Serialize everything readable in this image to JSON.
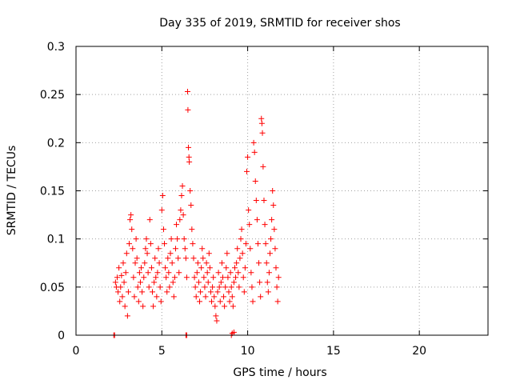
{
  "chart_data": {
    "type": "scatter",
    "title": "Day 335 of 2019, SRMTID for receiver shos",
    "xlabel": "GPS time / hours",
    "ylabel": "SRMTID / TECUs",
    "xlim": [
      0,
      24
    ],
    "ylim": [
      0,
      0.3
    ],
    "x_ticks": [
      0,
      5,
      10,
      15,
      20
    ],
    "y_ticks": [
      0,
      0.05,
      0.1,
      0.15,
      0.2,
      0.25,
      0.3
    ],
    "x_tick_labels": [
      "0",
      "5",
      "10",
      "15",
      "20"
    ],
    "y_tick_labels": [
      "0",
      "0.05",
      "0.1",
      "0.15",
      "0.2",
      "0.25",
      "0.3"
    ],
    "grid": true,
    "marker": "plus",
    "color": "#ff0000",
    "series": [
      {
        "name": "SRMTID",
        "points": [
          [
            2.2,
            0.0
          ],
          [
            2.25,
            0.0
          ],
          [
            6.4,
            0.0
          ],
          [
            6.45,
            0.0
          ],
          [
            9.05,
            0.0
          ],
          [
            9.1,
            0.002
          ],
          [
            9.2,
            0.003
          ],
          [
            2.3,
            0.055
          ],
          [
            2.35,
            0.05
          ],
          [
            2.4,
            0.06
          ],
          [
            2.45,
            0.045
          ],
          [
            2.5,
            0.07
          ],
          [
            2.55,
            0.035
          ],
          [
            2.6,
            0.05
          ],
          [
            2.65,
            0.062
          ],
          [
            2.7,
            0.04
          ],
          [
            2.75,
            0.075
          ],
          [
            2.8,
            0.055
          ],
          [
            2.85,
            0.03
          ],
          [
            2.9,
            0.065
          ],
          [
            2.95,
            0.085
          ],
          [
            3.0,
            0.02
          ],
          [
            3.05,
            0.045
          ],
          [
            3.1,
            0.095
          ],
          [
            3.15,
            0.12
          ],
          [
            3.2,
            0.125
          ],
          [
            3.25,
            0.11
          ],
          [
            3.3,
            0.09
          ],
          [
            3.35,
            0.06
          ],
          [
            3.4,
            0.04
          ],
          [
            3.45,
            0.075
          ],
          [
            3.5,
            0.1
          ],
          [
            3.55,
            0.08
          ],
          [
            3.6,
            0.05
          ],
          [
            3.65,
            0.035
          ],
          [
            3.7,
            0.065
          ],
          [
            3.75,
            0.055
          ],
          [
            3.8,
            0.07
          ],
          [
            3.85,
            0.045
          ],
          [
            3.9,
            0.03
          ],
          [
            3.95,
            0.06
          ],
          [
            4.0,
            0.075
          ],
          [
            4.05,
            0.09
          ],
          [
            4.1,
            0.1
          ],
          [
            4.15,
            0.085
          ],
          [
            4.2,
            0.065
          ],
          [
            4.25,
            0.05
          ],
          [
            4.3,
            0.12
          ],
          [
            4.35,
            0.095
          ],
          [
            4.4,
            0.07
          ],
          [
            4.45,
            0.045
          ],
          [
            4.5,
            0.03
          ],
          [
            4.55,
            0.055
          ],
          [
            4.6,
            0.08
          ],
          [
            4.65,
            0.06
          ],
          [
            4.7,
            0.04
          ],
          [
            4.75,
            0.065
          ],
          [
            4.8,
            0.09
          ],
          [
            4.85,
            0.075
          ],
          [
            4.9,
            0.05
          ],
          [
            4.95,
            0.035
          ],
          [
            5.0,
            0.13
          ],
          [
            5.05,
            0.145
          ],
          [
            5.1,
            0.11
          ],
          [
            5.15,
            0.095
          ],
          [
            5.2,
            0.07
          ],
          [
            5.25,
            0.06
          ],
          [
            5.3,
            0.045
          ],
          [
            5.35,
            0.08
          ],
          [
            5.4,
            0.065
          ],
          [
            5.45,
            0.05
          ],
          [
            5.5,
            0.085
          ],
          [
            5.55,
            0.1
          ],
          [
            5.6,
            0.075
          ],
          [
            5.65,
            0.055
          ],
          [
            5.7,
            0.04
          ],
          [
            5.75,
            0.06
          ],
          [
            5.8,
            0.09
          ],
          [
            5.85,
            0.115
          ],
          [
            5.9,
            0.1
          ],
          [
            5.95,
            0.08
          ],
          [
            6.0,
            0.065
          ],
          [
            6.05,
            0.12
          ],
          [
            6.1,
            0.13
          ],
          [
            6.15,
            0.145
          ],
          [
            6.2,
            0.155
          ],
          [
            6.25,
            0.125
          ],
          [
            6.3,
            0.1
          ],
          [
            6.35,
            0.09
          ],
          [
            6.4,
            0.08
          ],
          [
            6.45,
            0.06
          ],
          [
            6.5,
            0.253
          ],
          [
            6.52,
            0.234
          ],
          [
            6.55,
            0.195
          ],
          [
            6.58,
            0.185
          ],
          [
            6.6,
            0.18
          ],
          [
            6.65,
            0.15
          ],
          [
            6.7,
            0.135
          ],
          [
            6.75,
            0.11
          ],
          [
            6.8,
            0.095
          ],
          [
            6.85,
            0.08
          ],
          [
            6.9,
            0.06
          ],
          [
            6.95,
            0.05
          ],
          [
            7.0,
            0.04
          ],
          [
            7.05,
            0.065
          ],
          [
            7.1,
            0.075
          ],
          [
            7.15,
            0.055
          ],
          [
            7.2,
            0.035
          ],
          [
            7.25,
            0.045
          ],
          [
            7.3,
            0.07
          ],
          [
            7.35,
            0.09
          ],
          [
            7.4,
            0.08
          ],
          [
            7.45,
            0.06
          ],
          [
            7.5,
            0.05
          ],
          [
            7.55,
            0.04
          ],
          [
            7.6,
            0.075
          ],
          [
            7.65,
            0.065
          ],
          [
            7.7,
            0.055
          ],
          [
            7.75,
            0.085
          ],
          [
            7.8,
            0.07
          ],
          [
            7.85,
            0.045
          ],
          [
            7.9,
            0.035
          ],
          [
            7.95,
            0.05
          ],
          [
            8.0,
            0.06
          ],
          [
            8.05,
            0.04
          ],
          [
            8.1,
            0.03
          ],
          [
            8.15,
            0.02
          ],
          [
            8.2,
            0.015
          ],
          [
            8.25,
            0.045
          ],
          [
            8.3,
            0.065
          ],
          [
            8.35,
            0.05
          ],
          [
            8.4,
            0.035
          ],
          [
            8.45,
            0.055
          ],
          [
            8.5,
            0.075
          ],
          [
            8.55,
            0.06
          ],
          [
            8.6,
            0.04
          ],
          [
            8.65,
            0.03
          ],
          [
            8.7,
            0.05
          ],
          [
            8.75,
            0.07
          ],
          [
            8.8,
            0.085
          ],
          [
            8.85,
            0.06
          ],
          [
            8.9,
            0.045
          ],
          [
            8.95,
            0.035
          ],
          [
            9.0,
            0.065
          ],
          [
            9.05,
            0.05
          ],
          [
            9.1,
            0.04
          ],
          [
            9.15,
            0.03
          ],
          [
            9.2,
            0.055
          ],
          [
            9.25,
            0.07
          ],
          [
            9.3,
            0.06
          ],
          [
            9.35,
            0.075
          ],
          [
            9.4,
            0.09
          ],
          [
            9.45,
            0.065
          ],
          [
            9.5,
            0.05
          ],
          [
            9.55,
            0.08
          ],
          [
            9.6,
            0.1
          ],
          [
            9.65,
            0.11
          ],
          [
            9.7,
            0.085
          ],
          [
            9.75,
            0.06
          ],
          [
            9.8,
            0.045
          ],
          [
            9.85,
            0.07
          ],
          [
            9.9,
            0.095
          ],
          [
            9.95,
            0.17
          ],
          [
            10.0,
            0.185
          ],
          [
            10.05,
            0.13
          ],
          [
            10.1,
            0.115
          ],
          [
            10.15,
            0.09
          ],
          [
            10.2,
            0.065
          ],
          [
            10.25,
            0.05
          ],
          [
            10.3,
            0.035
          ],
          [
            10.35,
            0.2
          ],
          [
            10.4,
            0.19
          ],
          [
            10.45,
            0.16
          ],
          [
            10.5,
            0.14
          ],
          [
            10.55,
            0.12
          ],
          [
            10.6,
            0.095
          ],
          [
            10.65,
            0.075
          ],
          [
            10.7,
            0.055
          ],
          [
            10.75,
            0.04
          ],
          [
            10.8,
            0.225
          ],
          [
            10.83,
            0.22
          ],
          [
            10.86,
            0.21
          ],
          [
            10.9,
            0.175
          ],
          [
            10.95,
            0.14
          ],
          [
            11.0,
            0.115
          ],
          [
            11.05,
            0.095
          ],
          [
            11.1,
            0.075
          ],
          [
            11.15,
            0.055
          ],
          [
            11.2,
            0.045
          ],
          [
            11.25,
            0.065
          ],
          [
            11.3,
            0.085
          ],
          [
            11.35,
            0.1
          ],
          [
            11.4,
            0.12
          ],
          [
            11.45,
            0.15
          ],
          [
            11.5,
            0.135
          ],
          [
            11.55,
            0.11
          ],
          [
            11.6,
            0.09
          ],
          [
            11.65,
            0.07
          ],
          [
            11.7,
            0.05
          ],
          [
            11.75,
            0.035
          ],
          [
            11.8,
            0.06
          ]
        ]
      }
    ]
  }
}
